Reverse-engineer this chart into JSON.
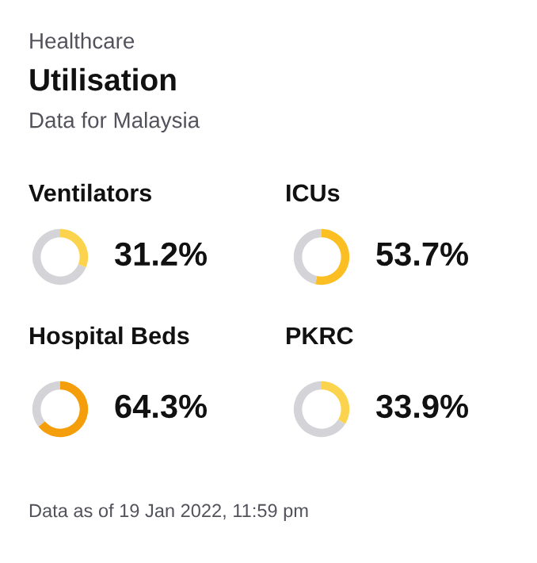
{
  "chart_data": [
    {
      "type": "other",
      "title": "Utilisation",
      "subtitle": "Data for Malaysia",
      "annotations": [
        "Healthcare",
        "Data as of 19 Jan 2022, 11:59 pm"
      ]
    },
    {
      "type": "donut",
      "title": "Ventilators",
      "categories": [
        null,
        null
      ],
      "values": [
        31.2,
        68.8
      ],
      "colors": [
        "#fcd34d",
        "#d4d4d8"
      ],
      "value_labels": [
        "31.2%",
        null
      ]
    },
    {
      "type": "donut",
      "title": "ICUs",
      "categories": [
        null,
        null
      ],
      "values": [
        53.7,
        46.3
      ],
      "colors": [
        "#fbbf24",
        "#d4d4d8"
      ],
      "value_labels": [
        "53.7%",
        null
      ]
    },
    {
      "type": "donut",
      "title": "Hospital Beds",
      "categories": [
        null,
        null
      ],
      "values": [
        64.3,
        35.7
      ],
      "colors": [
        "#f59e0b",
        "#d4d4d8"
      ],
      "value_labels": [
        "64.3%",
        null
      ]
    },
    {
      "type": "donut",
      "title": "PKRC",
      "categories": [
        null,
        null
      ],
      "values": [
        33.9,
        66.1
      ],
      "colors": [
        "#fcd34d",
        "#d4d4d8"
      ],
      "value_labels": [
        "33.9%",
        null
      ]
    }
  ]
}
